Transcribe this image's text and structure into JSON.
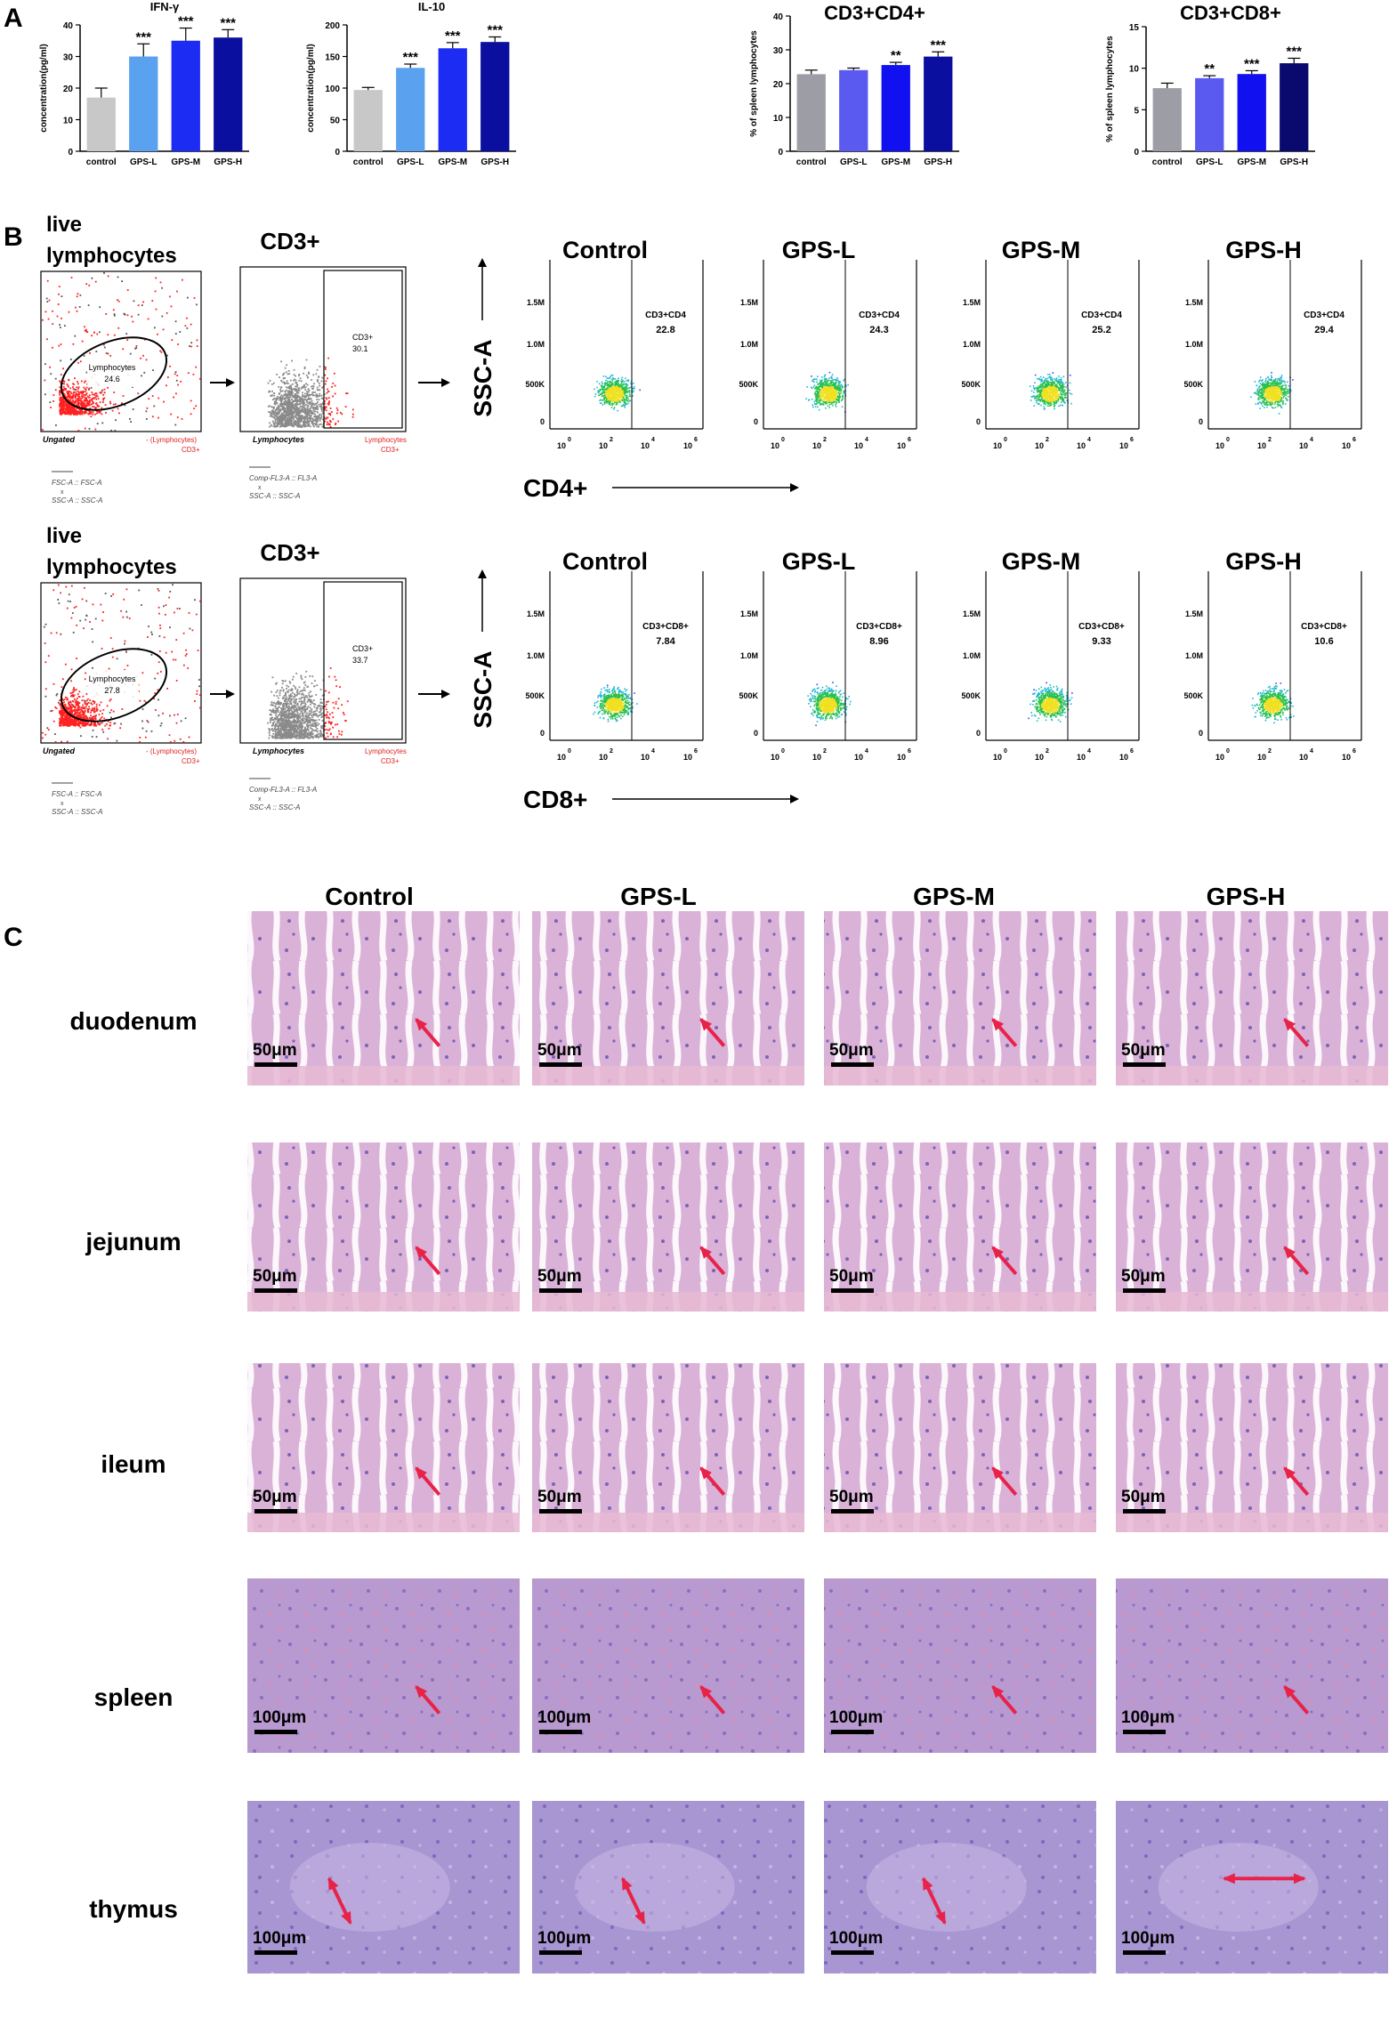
{
  "panels": {
    "a": {
      "letter": "A"
    },
    "b": {
      "letter": "B"
    },
    "c": {
      "letter": "C"
    }
  },
  "colors": {
    "control": "#c8c8c8",
    "control2": "#9d9da6",
    "gps_l": "#5aa2f0",
    "gps_m": "#1c2cf2",
    "gps_h": "#0a0fa0",
    "gps_h_dark": "#0a0a6e",
    "arrow": "#e8234a",
    "he_pink": "#e4b4d6",
    "he_purple": "#a089c8",
    "dot_red": "#ff2020"
  },
  "chart_data": [
    {
      "type": "bar",
      "title": "IFN-γ",
      "ylabel": "concentration(pg/ml)",
      "categories": [
        "control",
        "GPS-L",
        "GPS-M",
        "GPS-H"
      ],
      "values": [
        17,
        30,
        35,
        36
      ],
      "errors": [
        3,
        4,
        4,
        2.5
      ],
      "significance": [
        "",
        "***",
        "***",
        "***"
      ],
      "ylim": [
        0,
        40
      ],
      "yticks": [
        0,
        10,
        20,
        30,
        40
      ]
    },
    {
      "type": "bar",
      "title": "IL-10",
      "ylabel": "concentration(pg/ml)",
      "categories": [
        "control",
        "GPS-L",
        "GPS-M",
        "GPS-H"
      ],
      "values": [
        97,
        132,
        163,
        173
      ],
      "errors": [
        4,
        6,
        9,
        8
      ],
      "significance": [
        "",
        "***",
        "***",
        "***"
      ],
      "ylim": [
        0,
        200
      ],
      "yticks": [
        0,
        50,
        100,
        150,
        200
      ]
    },
    {
      "type": "bar",
      "title": "CD3+CD4+",
      "ylabel": "% of spleen lymphocytes",
      "categories": [
        "control",
        "GPS-L",
        "GPS-M",
        "GPS-H"
      ],
      "values": [
        22.8,
        24.0,
        25.5,
        28.0
      ],
      "errors": [
        1.2,
        0.6,
        0.8,
        1.4
      ],
      "significance": [
        "",
        "",
        "**",
        "***"
      ],
      "ylim": [
        0,
        40
      ],
      "yticks": [
        0,
        10,
        20,
        30,
        40
      ]
    },
    {
      "type": "bar",
      "title": "CD3+CD8+",
      "ylabel": "% of spleen lymphocytes",
      "categories": [
        "control",
        "GPS-L",
        "GPS-M",
        "GPS-H"
      ],
      "values": [
        7.6,
        8.8,
        9.3,
        10.6
      ],
      "errors": [
        0.6,
        0.3,
        0.4,
        0.6
      ],
      "significance": [
        "",
        "**",
        "***",
        "***"
      ],
      "ylim": [
        0,
        15
      ],
      "yticks": [
        0,
        5,
        10,
        15
      ]
    }
  ],
  "flow": {
    "rows": [
      {
        "gate_title": "live lymphocytes",
        "ellipse_label": "Lymphocytes",
        "ellipse_value": "24.6",
        "ungated": "Ungated",
        "legend1": "- (Lymphocytes)",
        "legend2": "CD3+",
        "axis_note_1": "FSC-A :: FSC-A",
        "axis_note_2": "x",
        "axis_note_3": "SSC-A :: SSC-A",
        "cd3_title": "CD3+",
        "cd3_label": "CD3+",
        "cd3_value": "30.1",
        "cd3_footer": "Lymphocytes",
        "cd3_legend1": "Lymphocytes",
        "cd3_legend2": "CD3+",
        "cd3_note_1": "Comp-FL3-A :: FL3-A",
        "cd3_note_2": "x",
        "cd3_note_3": "SSC-A :: SSC-A",
        "yaxis": "SSC-A",
        "xaxis": "CD4+",
        "yticks": [
          "1.5M",
          "1.0M",
          "500K",
          "0"
        ],
        "xticks": [
          "10",
          "0",
          "10",
          "2",
          "10",
          "4",
          "10",
          "6"
        ],
        "gate_name": "CD3+CD4",
        "groups": [
          {
            "title": "Control",
            "value": "22.8"
          },
          {
            "title": "GPS-L",
            "value": "24.3"
          },
          {
            "title": "GPS-M",
            "value": "25.2"
          },
          {
            "title": "GPS-H",
            "value": "29.4"
          }
        ]
      },
      {
        "gate_title": "live lymphocytes",
        "ellipse_label": "Lymphocytes",
        "ellipse_value": "27.8",
        "ungated": "Ungated",
        "legend1": "- (Lymphocytes)",
        "legend2": "CD3+",
        "axis_note_1": "FSC-A :: FSC-A",
        "axis_note_2": "x",
        "axis_note_3": "SSC-A :: SSC-A",
        "cd3_title": "CD3+",
        "cd3_label": "CD3+",
        "cd3_value": "33.7",
        "cd3_footer": "Lymphocytes",
        "cd3_legend1": "Lymphocytes",
        "cd3_legend2": "CD3+",
        "cd3_note_1": "Comp-FL3-A :: FL3-A",
        "cd3_note_2": "x",
        "cd3_note_3": "SSC-A :: SSC-A",
        "yaxis": "SSC-A",
        "xaxis": "CD8+",
        "yticks": [
          "1.5M",
          "1.0M",
          "500K",
          "0"
        ],
        "xticks": [
          "10",
          "0",
          "10",
          "2",
          "10",
          "4",
          "10",
          "6"
        ],
        "gate_name": "CD3+CD8+",
        "groups": [
          {
            "title": "Control",
            "value": "7.84"
          },
          {
            "title": "GPS-L",
            "value": "8.96"
          },
          {
            "title": "GPS-M",
            "value": "9.33"
          },
          {
            "title": "GPS-H",
            "value": "10.6"
          }
        ]
      }
    ]
  },
  "histology": {
    "columns": [
      "Control",
      "GPS-L",
      "GPS-M",
      "GPS-H"
    ],
    "rows": [
      {
        "label": "duodenum",
        "scale": "50μm"
      },
      {
        "label": "jejunum",
        "scale": "50μm"
      },
      {
        "label": "ileum",
        "scale": "50μm"
      },
      {
        "label": "spleen",
        "scale": "100μm"
      },
      {
        "label": "thymus",
        "scale": "100μm"
      }
    ]
  }
}
